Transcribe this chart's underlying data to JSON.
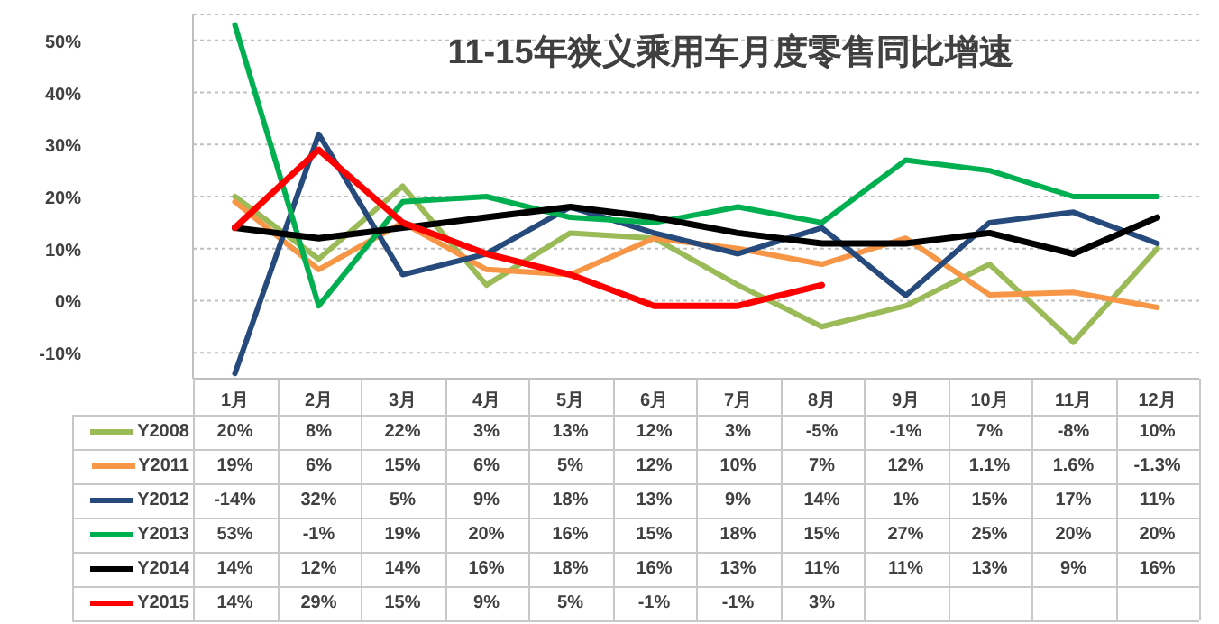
{
  "chart_data": {
    "type": "line",
    "title": "11-15年狭义乘用车月度零售同比增速",
    "categories": [
      "1月",
      "2月",
      "3月",
      "4月",
      "5月",
      "6月",
      "7月",
      "8月",
      "9月",
      "10月",
      "11月",
      "12月"
    ],
    "series": [
      {
        "name": "Y2008",
        "color": "#9bbb59",
        "values": [
          20,
          8,
          22,
          3,
          13,
          12,
          3,
          -5,
          -1,
          7,
          -8,
          10
        ],
        "value_labels": [
          "20%",
          "8%",
          "22%",
          "3%",
          "13%",
          "12%",
          "3%",
          "-5%",
          "-1%",
          "7%",
          "-8%",
          "10%"
        ]
      },
      {
        "name": "Y2011",
        "color": "#f79646",
        "values": [
          19,
          6,
          15,
          6,
          5,
          12,
          10,
          7,
          12,
          1.1,
          1.6,
          -1.3
        ],
        "value_labels": [
          "19%",
          "6%",
          "15%",
          "6%",
          "5%",
          "12%",
          "10%",
          "7%",
          "12%",
          "1.1%",
          "1.6%",
          "-1.3%"
        ]
      },
      {
        "name": "Y2012",
        "color": "#264a7c",
        "values": [
          -14,
          32,
          5,
          9,
          18,
          13,
          9,
          14,
          1,
          15,
          17,
          11
        ],
        "value_labels": [
          "-14%",
          "32%",
          "5%",
          "9%",
          "18%",
          "13%",
          "9%",
          "14%",
          "1%",
          "15%",
          "17%",
          "11%"
        ]
      },
      {
        "name": "Y2013",
        "color": "#00b050",
        "values": [
          53,
          -1,
          19,
          20,
          16,
          15,
          18,
          15,
          27,
          25,
          20,
          20
        ],
        "value_labels": [
          "53%",
          "-1%",
          "19%",
          "20%",
          "16%",
          "15%",
          "18%",
          "15%",
          "27%",
          "25%",
          "20%",
          "20%"
        ]
      },
      {
        "name": "Y2014",
        "color": "#000000",
        "values": [
          14,
          12,
          14,
          16,
          18,
          16,
          13,
          11,
          11,
          13,
          9,
          16
        ],
        "value_labels": [
          "14%",
          "12%",
          "14%",
          "16%",
          "18%",
          "16%",
          "13%",
          "11%",
          "11%",
          "13%",
          "9%",
          "16%"
        ]
      },
      {
        "name": "Y2015",
        "color": "#ff0000",
        "values": [
          14,
          29,
          15,
          9,
          5,
          -1,
          -1,
          3,
          null,
          null,
          null,
          null
        ],
        "value_labels": [
          "14%",
          "29%",
          "15%",
          "9%",
          "5%",
          "-1%",
          "-1%",
          "3%",
          null,
          null,
          null,
          null
        ]
      }
    ],
    "ylim": [
      -15,
      55
    ],
    "yticks": [
      {
        "value": -10,
        "label": "-10%"
      },
      {
        "value": 0,
        "label": "0%"
      },
      {
        "value": 10,
        "label": "10%"
      },
      {
        "value": 20,
        "label": "20%"
      },
      {
        "value": 30,
        "label": "30%"
      },
      {
        "value": 40,
        "label": "40%"
      },
      {
        "value": 50,
        "label": "50%"
      }
    ],
    "grid": "y",
    "legend": "bottom left",
    "marker": "none",
    "line_style": "solid"
  }
}
